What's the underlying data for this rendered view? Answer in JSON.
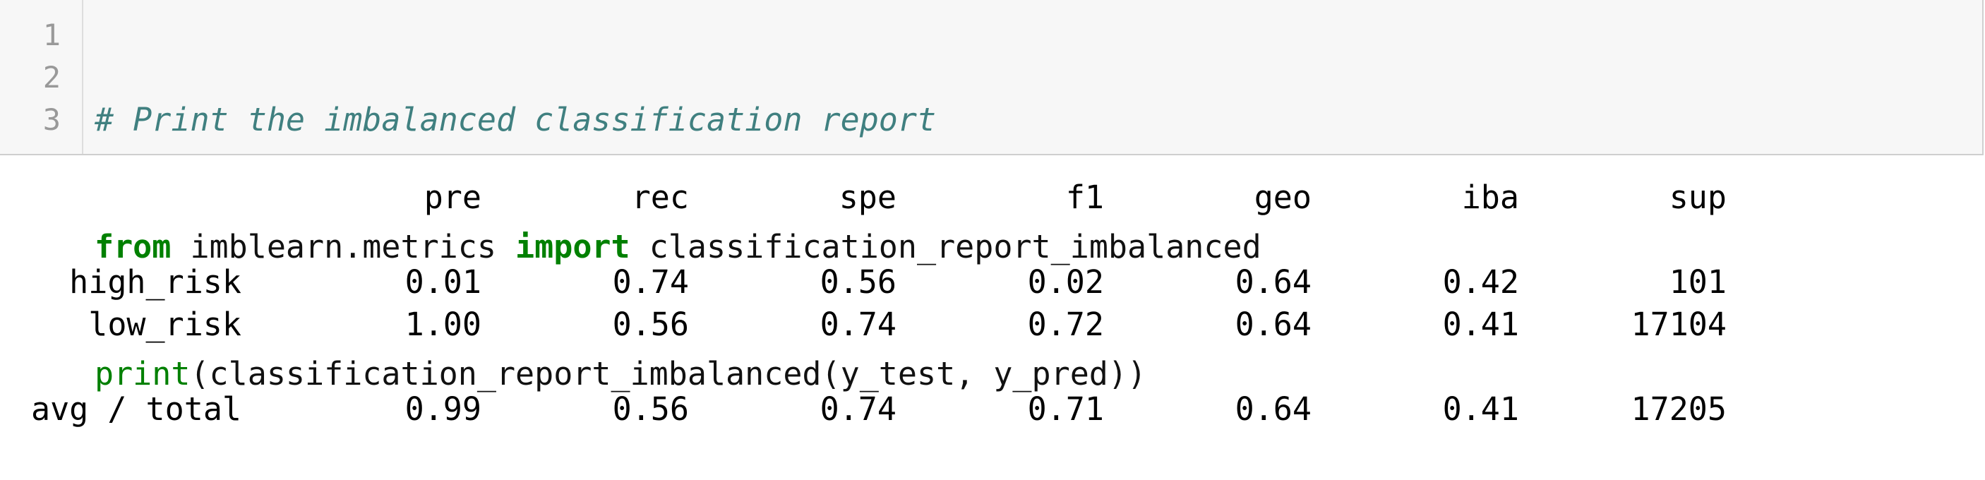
{
  "code_cell": {
    "line_numbers": [
      "1",
      "2",
      "3"
    ],
    "line1": {
      "comment": "# Print the imbalanced classification report"
    },
    "line2": {
      "kw_from": "from",
      "module": " imblearn.metrics ",
      "kw_import": "import",
      "name": " classification_report_imbalanced"
    },
    "line3": {
      "builtin": "print",
      "rest": "(classification_report_imbalanced(y_test, y_pred))"
    }
  },
  "output": {
    "headers": [
      "pre",
      "rec",
      "spe",
      "f1",
      "geo",
      "iba",
      "sup"
    ],
    "rows": [
      {
        "label": "high_risk",
        "values": [
          "0.01",
          "0.74",
          "0.56",
          "0.02",
          "0.64",
          "0.42",
          "101"
        ]
      },
      {
        "label": "low_risk",
        "values": [
          "1.00",
          "0.56",
          "0.74",
          "0.72",
          "0.64",
          "0.41",
          "17104"
        ]
      }
    ],
    "total": {
      "label": "avg / total",
      "values": [
        "0.99",
        "0.56",
        "0.74",
        "0.71",
        "0.64",
        "0.41",
        "17205"
      ]
    }
  }
}
